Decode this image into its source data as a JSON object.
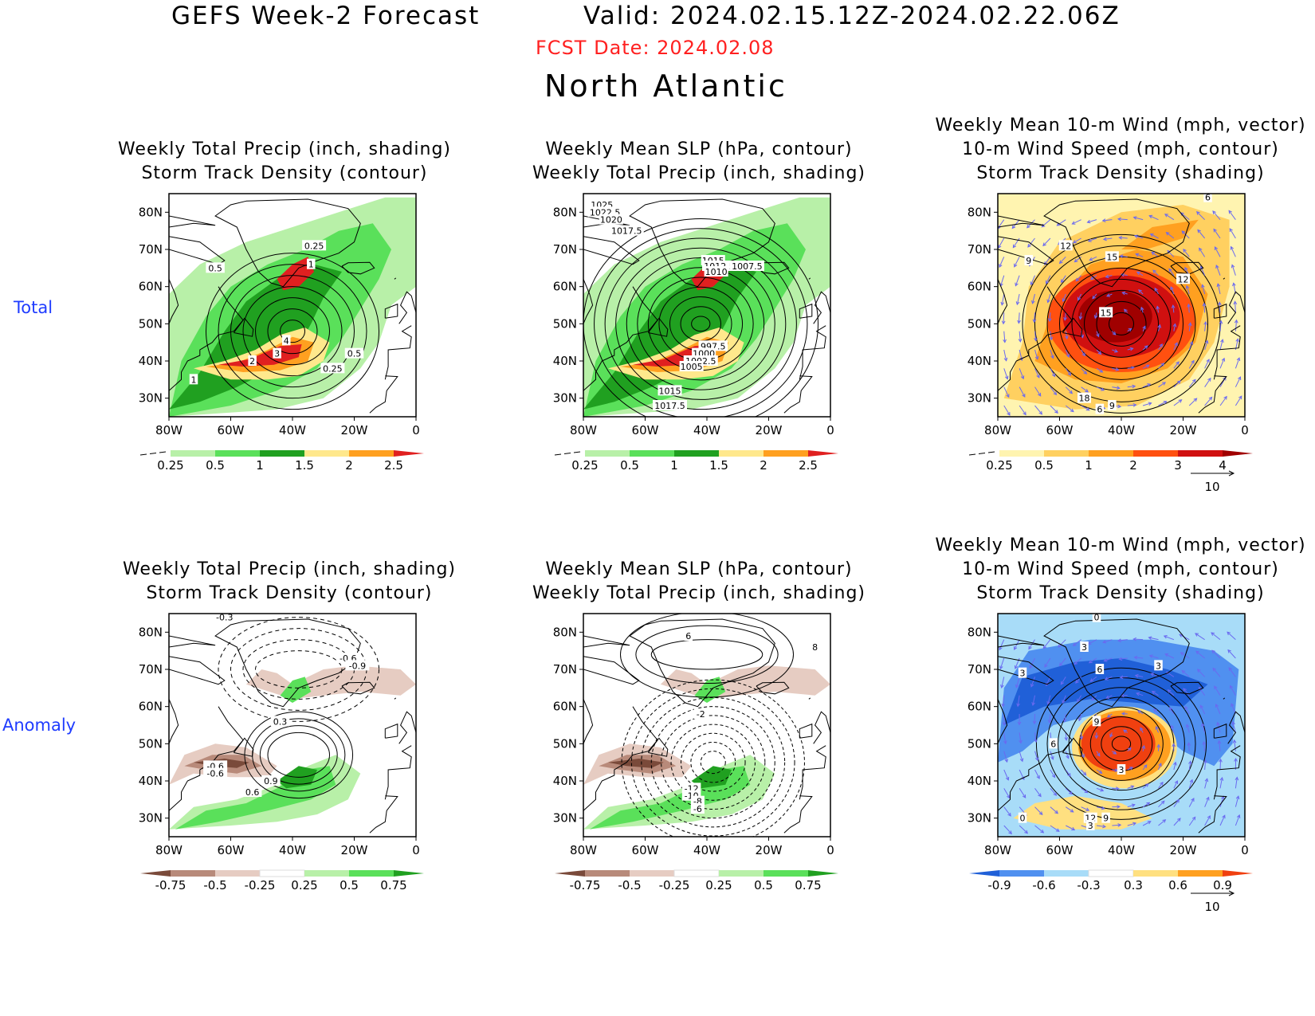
{
  "header": {
    "title": "GEFS Week-2 Forecast",
    "valid": "Valid: 2024.02.15.12Z-2024.02.22.06Z",
    "fcst_date": "FCST Date: 2024.02.08",
    "region": "North Atlantic"
  },
  "rows": {
    "total": "Total",
    "anomaly": "Anomaly"
  },
  "axes": {
    "lat_labels": [
      "80N",
      "70N",
      "60N",
      "50N",
      "40N",
      "30N"
    ],
    "lon_labels": [
      "80W",
      "60W",
      "40W",
      "20W",
      "0"
    ]
  },
  "panels": {
    "p1": {
      "title1": "Weekly Total Precip (inch, shading)",
      "title2": "Storm Track Density (contour)",
      "colorbar": [
        "0.25",
        "0.5",
        "1",
        "1.5",
        "2",
        "2.5"
      ],
      "contour_labels": [
        "0.25",
        "0.5",
        "1",
        "1",
        "2",
        "3",
        "4",
        "0.5",
        "0.25"
      ]
    },
    "p2": {
      "title1": "Weekly Mean SLP (hPa, contour)",
      "title2": "Weekly Total Precip (inch, shading)",
      "colorbar": [
        "0.25",
        "0.5",
        "1",
        "1.5",
        "2",
        "2.5"
      ],
      "contour_labels": [
        "1025",
        "1022.5",
        "1020",
        "1017.5",
        "1015",
        "1012.5",
        "1010",
        "1007.5",
        "997.5",
        "1000",
        "1002.5",
        "1005",
        "1015",
        "1017.5"
      ]
    },
    "p3": {
      "title1": "Weekly Mean 10-m Wind (mph, vector)",
      "title2": "10-m Wind Speed (mph, contour)",
      "title3": "Storm Track Density (shading)",
      "colorbar": [
        "0.25",
        "0.5",
        "1",
        "2",
        "3",
        "4"
      ],
      "contour_labels": [
        "6",
        "12",
        "9",
        "15",
        "12",
        "15",
        "18",
        "9",
        "6"
      ],
      "vector_ref": "10"
    },
    "p4": {
      "title1": "Weekly Total Precip (inch, shading)",
      "title2": "Storm Track Density (contour)",
      "colorbar": [
        "-0.75",
        "-0.5",
        "-0.25",
        "0.25",
        "0.5",
        "0.75"
      ],
      "contour_labels": [
        "-0.3",
        "-0.6",
        "-0.9",
        "0.3",
        "-0.6",
        "-0.6",
        "0.9",
        "0.6"
      ]
    },
    "p5": {
      "title1": "Weekly Mean SLP (hPa, contour)",
      "title2": "Weekly Total Precip (inch, shading)",
      "colorbar": [
        "-0.75",
        "-0.5",
        "-0.25",
        "0.25",
        "0.5",
        "0.75"
      ],
      "contour_labels": [
        "6",
        "8",
        "-2",
        "-12",
        "-10",
        "-8",
        "-6"
      ]
    },
    "p6": {
      "title1": "Weekly Mean 10-m Wind (mph, vector)",
      "title2": "10-m Wind Speed (mph, contour)",
      "title3": "Storm Track Density (shading)",
      "colorbar": [
        "-0.9",
        "-0.6",
        "-0.3",
        "0.3",
        "0.6",
        "0.9"
      ],
      "contour_labels": [
        "0",
        "3",
        "3",
        "6",
        "3",
        "9",
        "6",
        "3",
        "12",
        "9",
        "0",
        "3"
      ],
      "vector_ref": "10"
    }
  },
  "colors": {
    "precip": [
      "#ffffff",
      "#b8f0a8",
      "#5ae05a",
      "#20a020",
      "#ffe88c",
      "#ffa020",
      "#e02020"
    ],
    "precip_anom": [
      "#7a4a3a",
      "#b88a7a",
      "#e6ccc2",
      "#ffffff",
      "#b8f0a8",
      "#5ae05a",
      "#20a020"
    ],
    "track": [
      "#ffffff",
      "#fff4b0",
      "#ffd060",
      "#ffa020",
      "#ff5010",
      "#d01010",
      "#a00000"
    ],
    "track_anom": [
      "#2060d8",
      "#5090f0",
      "#a8dcf8",
      "#ffffff",
      "#ffe080",
      "#ffa020",
      "#f04010"
    ],
    "contour": "#000000",
    "vector": "#6a6af0",
    "coast": "#000000"
  }
}
